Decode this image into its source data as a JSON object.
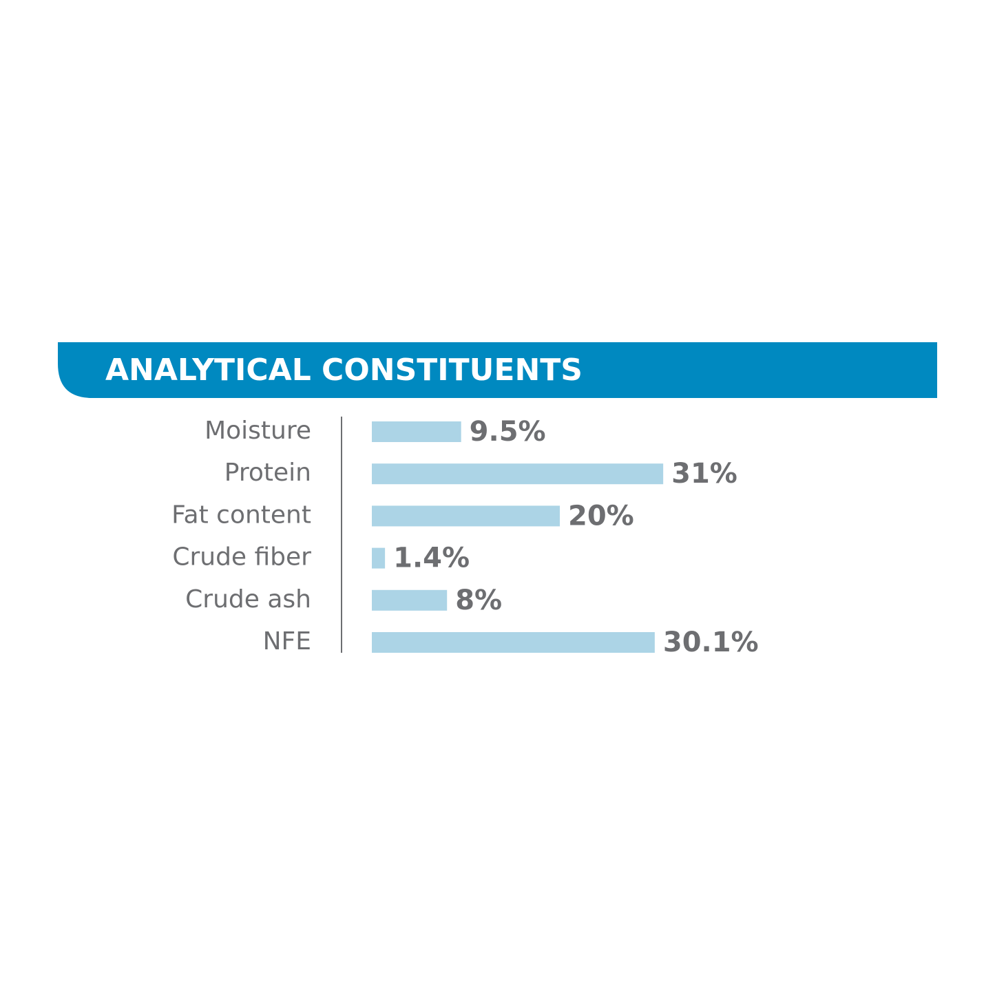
{
  "chart_data": {
    "type": "bar",
    "orientation": "horizontal",
    "title": "ANALYTICAL CONSTITUENTS",
    "categories": [
      "Moisture",
      "Protein",
      "Fat content",
      "Crude fiber",
      "Crude ash",
      "NFE"
    ],
    "values": [
      9.5,
      31,
      20,
      1.4,
      8,
      30.1
    ],
    "value_labels": [
      "9.5%",
      "31%",
      "20%",
      "1.4%",
      "8%",
      "30.1%"
    ],
    "color": "#acd4e6",
    "header_color": "#0089c0"
  }
}
